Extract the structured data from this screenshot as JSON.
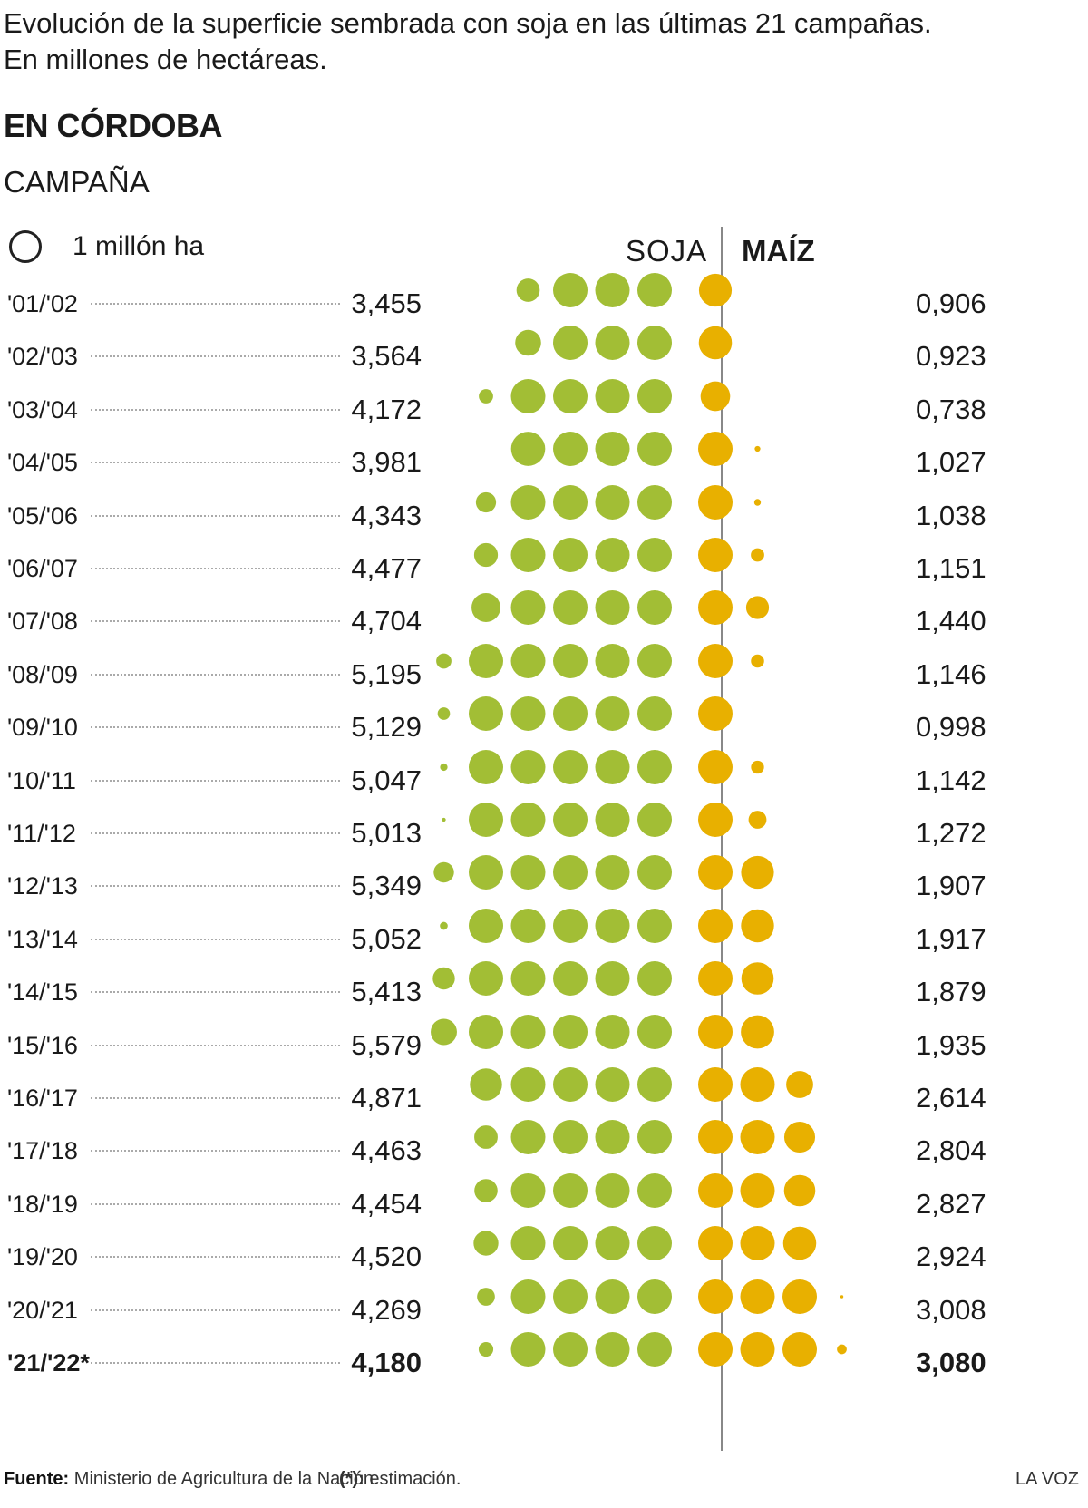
{
  "title_line1": "Evolución de la superficie sembrada con soja en las últimas 21 campañas.",
  "title_line2": "En millones de hectáreas.",
  "region": "EN CÓRDOBA",
  "campaign_header": "CAMPAÑA",
  "legend_label": "1 millón ha",
  "soja_header": "SOJA",
  "maiz_header": "MAÍZ",
  "colors": {
    "soja": "#a2be35",
    "maiz": "#e8b000"
  },
  "chart_data": {
    "type": "table",
    "unit_circle": "1 millón ha",
    "rows": [
      {
        "campaign": "'01/'02",
        "soja": "3,455",
        "maiz": "0,906",
        "soja_value": 3.455,
        "maiz_value": 0.906
      },
      {
        "campaign": "'02/'03",
        "soja": "3,564",
        "maiz": "0,923",
        "soja_value": 3.564,
        "maiz_value": 0.923
      },
      {
        "campaign": "'03/'04",
        "soja": "4,172",
        "maiz": "0,738",
        "soja_value": 4.172,
        "maiz_value": 0.738
      },
      {
        "campaign": "'04/'05",
        "soja": "3,981",
        "maiz": "1,027",
        "soja_value": 3.981,
        "maiz_value": 1.027
      },
      {
        "campaign": "'05/'06",
        "soja": "4,343",
        "maiz": "1,038",
        "soja_value": 4.343,
        "maiz_value": 1.038
      },
      {
        "campaign": "'06/'07",
        "soja": "4,477",
        "maiz": "1,151",
        "soja_value": 4.477,
        "maiz_value": 1.151
      },
      {
        "campaign": "'07/'08",
        "soja": "4,704",
        "maiz": "1,440",
        "soja_value": 4.704,
        "maiz_value": 1.44
      },
      {
        "campaign": "'08/'09",
        "soja": "5,195",
        "maiz": "1,146",
        "soja_value": 5.195,
        "maiz_value": 1.146
      },
      {
        "campaign": "'09/'10",
        "soja": "5,129",
        "maiz": "0,998",
        "soja_value": 5.129,
        "maiz_value": 0.998
      },
      {
        "campaign": "'10/'11",
        "soja": "5,047",
        "maiz": "1,142",
        "soja_value": 5.047,
        "maiz_value": 1.142
      },
      {
        "campaign": "'11/'12",
        "soja": "5,013",
        "maiz": "1,272",
        "soja_value": 5.013,
        "maiz_value": 1.272
      },
      {
        "campaign": "'12/'13",
        "soja": "5,349",
        "maiz": "1,907",
        "soja_value": 5.349,
        "maiz_value": 1.907
      },
      {
        "campaign": "'13/'14",
        "soja": "5,052",
        "maiz": "1,917",
        "soja_value": 5.052,
        "maiz_value": 1.917
      },
      {
        "campaign": "'14/'15",
        "soja": "5,413",
        "maiz": "1,879",
        "soja_value": 5.413,
        "maiz_value": 1.879
      },
      {
        "campaign": "'15/'16",
        "soja": "5,579",
        "maiz": "1,935",
        "soja_value": 5.579,
        "maiz_value": 1.935
      },
      {
        "campaign": "'16/'17",
        "soja": "4,871",
        "maiz": "2,614",
        "soja_value": 4.871,
        "maiz_value": 2.614
      },
      {
        "campaign": "'17/'18",
        "soja": "4,463",
        "maiz": "2,804",
        "soja_value": 4.463,
        "maiz_value": 2.804
      },
      {
        "campaign": "'18/'19",
        "soja": "4,454",
        "maiz": "2,827",
        "soja_value": 4.454,
        "maiz_value": 2.827
      },
      {
        "campaign": "'19/'20",
        "soja": "4,520",
        "maiz": "2,924",
        "soja_value": 4.52,
        "maiz_value": 2.924
      },
      {
        "campaign": "'20/'21",
        "soja": "4,269",
        "maiz": "3,008",
        "soja_value": 4.269,
        "maiz_value": 3.008
      },
      {
        "campaign": "'21/'22*",
        "soja": "4,180",
        "maiz": "3,080",
        "soja_value": 4.18,
        "maiz_value": 3.08,
        "estimate": true
      }
    ]
  },
  "footer": {
    "source_label": "Fuente:",
    "source_text": "Ministerio de Agricultura de la Nación.",
    "note_label": "(*):",
    "note_text": "estimación.",
    "brand": "LA VOZ"
  }
}
